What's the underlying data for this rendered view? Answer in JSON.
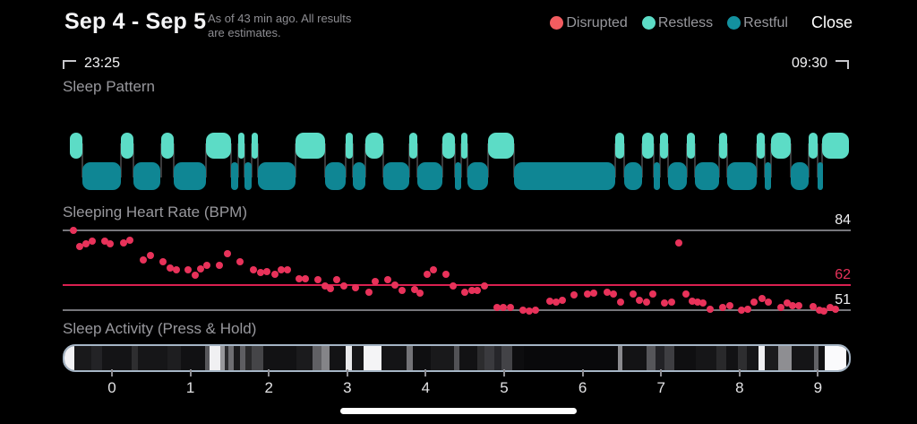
{
  "header": {
    "title": "Sep 4 - Sep 5",
    "subtitle_line1": "As of 43 min ago. All results",
    "subtitle_line2": "are estimates.",
    "close_label": "Close",
    "legend": [
      {
        "label": "Disrupted",
        "color": "#F25C60"
      },
      {
        "label": "Restless",
        "color": "#5CDCC6"
      },
      {
        "label": "Restful",
        "color": "#13919F"
      }
    ]
  },
  "time_range": {
    "start": "23:25",
    "end": "09:30"
  },
  "sections": {
    "pattern_label": "Sleep Pattern",
    "heart_label": "Sleeping Heart Rate (BPM)",
    "activity_label": "Sleep Activity (Press & Hold)"
  },
  "chart_data": [
    {
      "type": "hypnogram",
      "title": "Sleep Pattern",
      "x_unit": "hours_from_midnight",
      "levels": [
        "restless",
        "restful"
      ],
      "colors": {
        "restless": "#5CDCC6",
        "restful": "#0F8694",
        "connector": "#3A3A3C"
      },
      "segments": [
        [
          -0.536,
          -0.377,
          "restless"
        ],
        [
          -0.377,
          0.114,
          "restful"
        ],
        [
          0.114,
          0.274,
          "restless"
        ],
        [
          0.274,
          0.616,
          "restful"
        ],
        [
          0.628,
          0.788,
          "restless"
        ],
        [
          0.788,
          1.199,
          "restful"
        ],
        [
          1.199,
          1.518,
          "restless"
        ],
        [
          1.518,
          1.61,
          "restful"
        ],
        [
          1.61,
          1.689,
          "restless"
        ],
        [
          1.689,
          1.781,
          "restful"
        ],
        [
          1.781,
          1.861,
          "restless"
        ],
        [
          1.861,
          2.34,
          "restful"
        ],
        [
          2.34,
          2.717,
          "restless"
        ],
        [
          2.717,
          2.979,
          "restful"
        ],
        [
          2.979,
          3.071,
          "restless"
        ],
        [
          3.071,
          3.23,
          "restful"
        ],
        [
          3.23,
          3.459,
          "restless"
        ],
        [
          3.459,
          3.79,
          "restful"
        ],
        [
          3.79,
          3.893,
          "restless"
        ],
        [
          3.893,
          4.212,
          "restful"
        ],
        [
          4.212,
          4.372,
          "restless"
        ],
        [
          4.372,
          4.452,
          "restful"
        ],
        [
          4.452,
          4.532,
          "restless"
        ],
        [
          4.532,
          4.795,
          "restful"
        ],
        [
          4.795,
          5.125,
          "restless"
        ],
        [
          5.125,
          6.415,
          "restful"
        ],
        [
          6.415,
          6.53,
          "restless"
        ],
        [
          6.53,
          6.758,
          "restful"
        ],
        [
          6.758,
          6.906,
          "restless"
        ],
        [
          6.906,
          6.986,
          "restful"
        ],
        [
          6.986,
          7.089,
          "restless"
        ],
        [
          7.089,
          7.329,
          "restful"
        ],
        [
          7.329,
          7.432,
          "restless"
        ],
        [
          7.432,
          7.74,
          "restful"
        ],
        [
          7.74,
          7.842,
          "restless"
        ],
        [
          7.842,
          8.219,
          "restful"
        ],
        [
          8.219,
          8.322,
          "restless"
        ],
        [
          8.322,
          8.402,
          "restful"
        ],
        [
          8.402,
          8.653,
          "restless"
        ],
        [
          8.653,
          8.881,
          "restful"
        ],
        [
          8.881,
          8.995,
          "restless"
        ],
        [
          8.995,
          9.052,
          "restful"
        ],
        [
          9.052,
          9.395,
          "restless"
        ]
      ]
    },
    {
      "type": "scatter",
      "title": "Sleeping Heart Rate (BPM)",
      "x_unit": "hours_from_midnight",
      "y_unit": "bpm",
      "dot_color": "#E8325A",
      "ref_lines": [
        {
          "value": 84,
          "label": "84",
          "line_color": "#76767B",
          "label_color": "#EFEFF1"
        },
        {
          "value": 62,
          "label": "62",
          "line_color": "#D92050",
          "label_color": "#E8325A"
        },
        {
          "value": 51,
          "label": "51",
          "line_color": "#76767B",
          "label_color": "#EFEFF1"
        }
      ],
      "points": [
        [
          -0.49,
          84
        ],
        [
          -0.41,
          77.5
        ],
        [
          -0.33,
          78.5
        ],
        [
          -0.25,
          79.5
        ],
        [
          -0.09,
          79.5
        ],
        [
          -0.02,
          78.5
        ],
        [
          0.15,
          79
        ],
        [
          0.23,
          80
        ],
        [
          0.4,
          72
        ],
        [
          0.49,
          74
        ],
        [
          0.65,
          71.5
        ],
        [
          0.74,
          69
        ],
        [
          0.82,
          68
        ],
        [
          0.97,
          68
        ],
        [
          1.06,
          66
        ],
        [
          1.13,
          68.5
        ],
        [
          1.21,
          70
        ],
        [
          1.37,
          70
        ],
        [
          1.47,
          74.5
        ],
        [
          1.63,
          71.5
        ],
        [
          1.8,
          68
        ],
        [
          1.89,
          67
        ],
        [
          1.97,
          67.5
        ],
        [
          2.08,
          66.5
        ],
        [
          2.16,
          68
        ],
        [
          2.24,
          68
        ],
        [
          2.39,
          64.5
        ],
        [
          2.47,
          64.5
        ],
        [
          2.63,
          64
        ],
        [
          2.72,
          61.5
        ],
        [
          2.79,
          60.5
        ],
        [
          2.87,
          64
        ],
        [
          2.96,
          61.5
        ],
        [
          3.11,
          61
        ],
        [
          3.28,
          59
        ],
        [
          3.36,
          63.5
        ],
        [
          3.52,
          64
        ],
        [
          3.61,
          62
        ],
        [
          3.7,
          59.5
        ],
        [
          3.86,
          60
        ],
        [
          3.93,
          58.5
        ],
        [
          4.02,
          66.5
        ],
        [
          4.1,
          68
        ],
        [
          4.26,
          66.5
        ],
        [
          4.35,
          61.5
        ],
        [
          4.5,
          59
        ],
        [
          4.59,
          59.5
        ],
        [
          4.66,
          59.5
        ],
        [
          4.75,
          61.5
        ],
        [
          4.91,
          52
        ],
        [
          4.99,
          52
        ],
        [
          5.08,
          52
        ],
        [
          5.24,
          51
        ],
        [
          5.32,
          50.5
        ],
        [
          5.4,
          51
        ],
        [
          5.58,
          55
        ],
        [
          5.66,
          54.5
        ],
        [
          5.74,
          55.5
        ],
        [
          5.89,
          57.5
        ],
        [
          6.06,
          58
        ],
        [
          6.14,
          58.5
        ],
        [
          6.31,
          59
        ],
        [
          6.39,
          58
        ],
        [
          6.48,
          54.5
        ],
        [
          6.64,
          58
        ],
        [
          6.72,
          55.5
        ],
        [
          6.81,
          54.5
        ],
        [
          6.89,
          58
        ],
        [
          7.04,
          54
        ],
        [
          7.13,
          54.5
        ],
        [
          7.23,
          79
        ],
        [
          7.32,
          58
        ],
        [
          7.4,
          55
        ],
        [
          7.47,
          54.5
        ],
        [
          7.53,
          54
        ],
        [
          7.63,
          51.5
        ],
        [
          7.79,
          52
        ],
        [
          7.88,
          53
        ],
        [
          8.02,
          51
        ],
        [
          8.11,
          51.5
        ],
        [
          8.19,
          54.5
        ],
        [
          8.29,
          56
        ],
        [
          8.37,
          54.5
        ],
        [
          8.53,
          52
        ],
        [
          8.61,
          54
        ],
        [
          8.68,
          53
        ],
        [
          8.76,
          53
        ],
        [
          8.94,
          52.5
        ],
        [
          9.02,
          51
        ],
        [
          9.08,
          50.5
        ],
        [
          9.15,
          52
        ],
        [
          9.22,
          51.5
        ]
      ]
    },
    {
      "type": "heatmap",
      "title": "Sleep Activity (Press & Hold)",
      "x_ticks": [
        0,
        1,
        2,
        3,
        4,
        5,
        6,
        7,
        8,
        9
      ],
      "border_color": "#A5B5C5",
      "segments": [
        [
          0.0,
          0.0126,
          "#F2F2F5"
        ],
        [
          0.0126,
          0.0343,
          "#19191B"
        ],
        [
          0.0343,
          0.048,
          "#232326"
        ],
        [
          0.048,
          0.0857,
          "#141416"
        ],
        [
          0.0857,
          0.0937,
          "#2E2E30"
        ],
        [
          0.0937,
          0.1314,
          "#161618"
        ],
        [
          0.1314,
          0.1486,
          "#1E1E20"
        ],
        [
          0.1486,
          0.1806,
          "#111113"
        ],
        [
          0.1806,
          0.1863,
          "#58585C"
        ],
        [
          0.1863,
          0.2,
          "#F0F0F2"
        ],
        [
          0.2,
          0.2057,
          "#98989C"
        ],
        [
          0.2057,
          0.2103,
          "#2B2B2E"
        ],
        [
          0.2103,
          0.2171,
          "#6E6E72"
        ],
        [
          0.2171,
          0.2251,
          "#19191B"
        ],
        [
          0.2251,
          0.232,
          "#5E5E62"
        ],
        [
          0.232,
          0.24,
          "#28282A"
        ],
        [
          0.24,
          0.2549,
          "#454548"
        ],
        [
          0.2549,
          0.2971,
          "#121214"
        ],
        [
          0.2971,
          0.3177,
          "#1B1B1D"
        ],
        [
          0.3177,
          0.3291,
          "#606064"
        ],
        [
          0.3291,
          0.3394,
          "#848488"
        ],
        [
          0.3394,
          0.36,
          "#131315"
        ],
        [
          0.36,
          0.368,
          "#EAEAEC"
        ],
        [
          0.368,
          0.3829,
          "#161618"
        ],
        [
          0.3829,
          0.4057,
          "#F4F4F6"
        ],
        [
          0.4057,
          0.4377,
          "#141416"
        ],
        [
          0.4377,
          0.4457,
          "#737377"
        ],
        [
          0.4457,
          0.4686,
          "#0F0F11"
        ],
        [
          0.4686,
          0.4994,
          "#19191B"
        ],
        [
          0.4994,
          0.5063,
          "#525256"
        ],
        [
          0.5063,
          0.5291,
          "#121214"
        ],
        [
          0.5291,
          0.5383,
          "#2C2C2E"
        ],
        [
          0.5383,
          0.5509,
          "#3A3A3E"
        ],
        [
          0.5509,
          0.56,
          "#26262A"
        ],
        [
          0.56,
          0.5737,
          "#434347"
        ],
        [
          0.5737,
          0.5886,
          "#0D0D0F"
        ],
        [
          0.5886,
          0.7086,
          "#09090B"
        ],
        [
          0.7086,
          0.7143,
          "#8A8A8E"
        ],
        [
          0.7143,
          0.7451,
          "#131315"
        ],
        [
          0.7451,
          0.7566,
          "#56565A"
        ],
        [
          0.7566,
          0.768,
          "#222226"
        ],
        [
          0.768,
          0.7806,
          "#3E3E42"
        ],
        [
          0.7806,
          0.808,
          "#0F0F11"
        ],
        [
          0.808,
          0.8343,
          "#161618"
        ],
        [
          0.8343,
          0.848,
          "#29292B"
        ],
        [
          0.848,
          0.8629,
          "#121214"
        ],
        [
          0.8629,
          0.8743,
          "#2E2E30"
        ],
        [
          0.8743,
          0.8891,
          "#161618"
        ],
        [
          0.8891,
          0.8971,
          "#F0F0F2"
        ],
        [
          0.8971,
          0.9143,
          "#1B1B1D"
        ],
        [
          0.9143,
          0.9314,
          "#8E8E92"
        ],
        [
          0.9314,
          0.96,
          "#151517"
        ],
        [
          0.96,
          0.9657,
          "#626266"
        ],
        [
          0.9657,
          0.9737,
          "#111113"
        ],
        [
          0.9737,
          1.0,
          "#FAFAFC"
        ]
      ]
    }
  ]
}
